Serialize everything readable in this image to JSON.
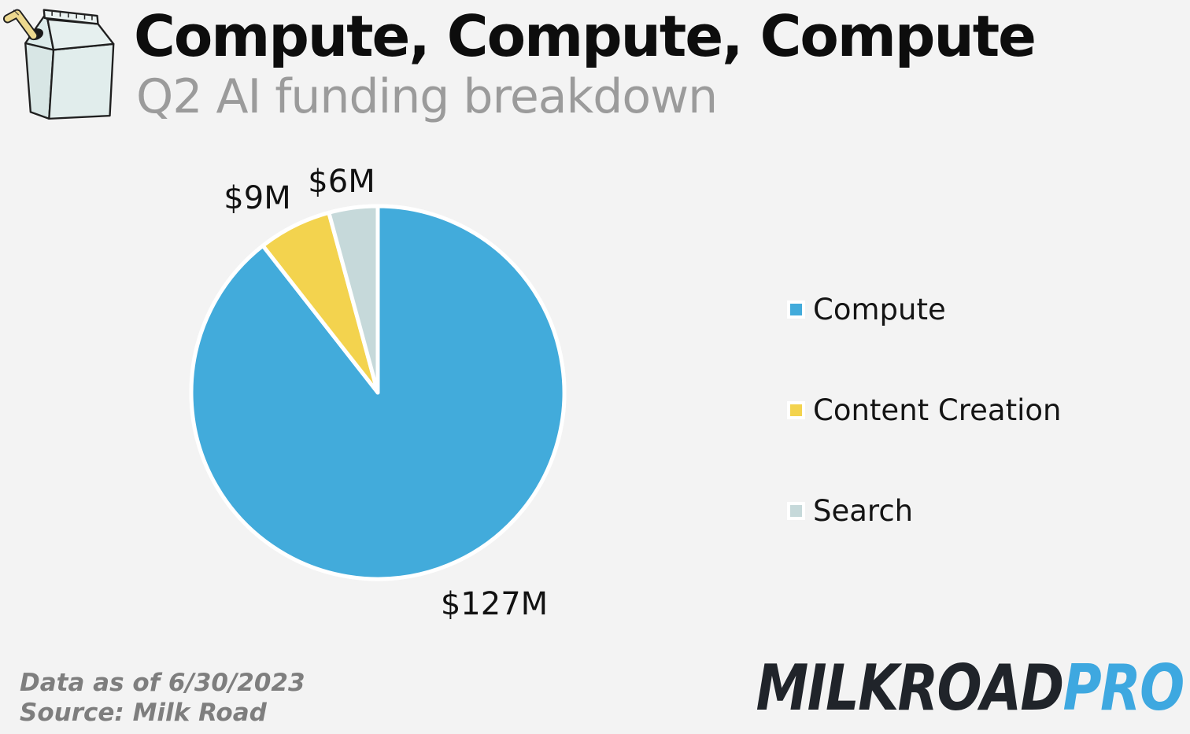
{
  "page": {
    "background_color": "#f3f3f3"
  },
  "header": {
    "title": "Compute, Compute, Compute",
    "subtitle": "Q2 AI funding breakdown"
  },
  "chart_data": {
    "type": "pie",
    "title": "Compute, Compute, Compute",
    "subtitle": "Q2 AI funding breakdown",
    "categories": [
      "Compute",
      "Content Creation",
      "Search"
    ],
    "values": [
      127,
      9,
      6
    ],
    "unit": "$M",
    "data_labels": [
      "$127M",
      "$9M",
      "$6M"
    ],
    "colors": [
      "#42abdb",
      "#f3d34e",
      "#c6d9da"
    ],
    "slice_border_color": "#ffffff",
    "start_angle_deg": 0,
    "direction": "clockwise",
    "legend_position": "right"
  },
  "footer": {
    "line1": "Data as of 6/30/2023",
    "line2": "Source: Milk Road"
  },
  "brand": {
    "carton_icon": "milk-carton-with-straw",
    "wordmark_black": "MILKROAD",
    "wordmark_accent": "PRO",
    "wordmark_black_color": "#20242a",
    "wordmark_accent_color": "#3ea8e0"
  }
}
